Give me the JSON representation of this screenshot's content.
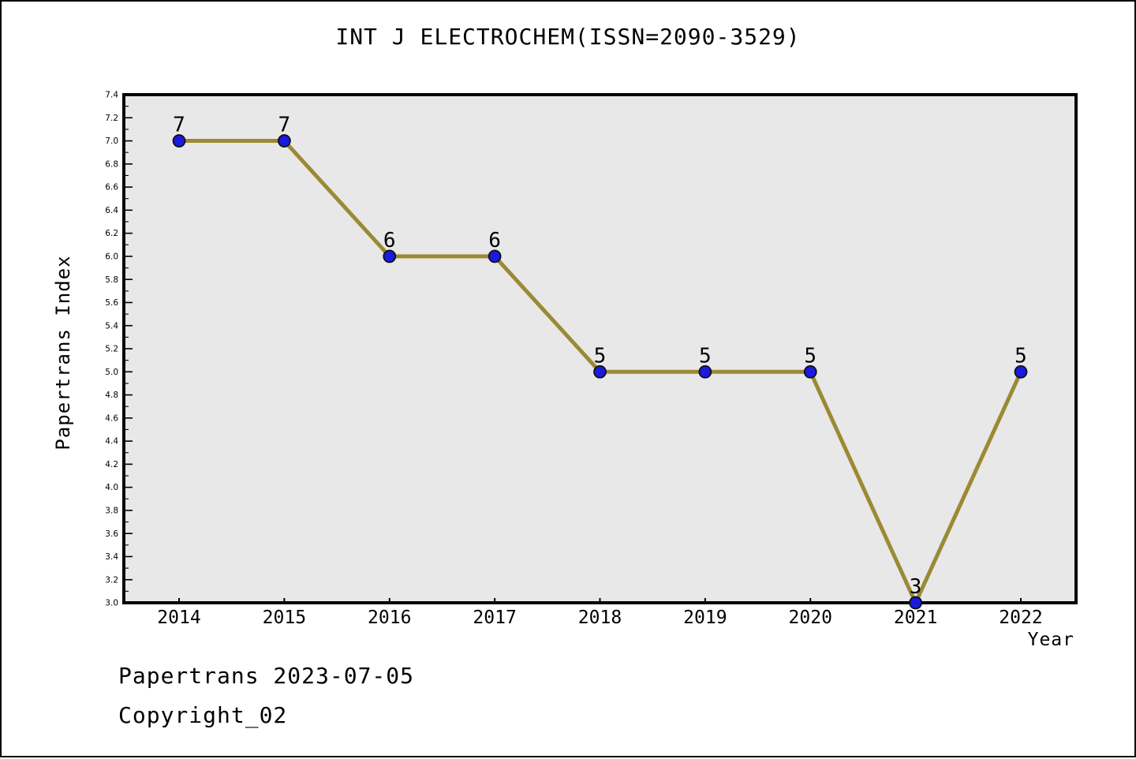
{
  "page": {
    "footer_line1": "Papertrans 2023-07-05",
    "footer_line2": "Copyright_02"
  },
  "chart_data": {
    "type": "line",
    "title": "INT J ELECTROCHEM(ISSN=2090-3529)",
    "xlabel": "Year",
    "ylabel": "Papertrans Index",
    "categories": [
      2014,
      2015,
      2016,
      2017,
      2018,
      2019,
      2020,
      2021,
      2022
    ],
    "values": [
      7,
      7,
      6,
      6,
      5,
      5,
      5,
      3,
      5
    ],
    "point_labels": [
      "7",
      "7",
      "6",
      "6",
      "5",
      "5",
      "5",
      "3",
      "5"
    ],
    "ylim": [
      3.0,
      7.4
    ],
    "ytick_major_step": 0.2,
    "ytick_minor_step": 0.1,
    "grid": false,
    "legend": "none",
    "colors": {
      "line": "#9b8a35",
      "marker_fill": "#1a1ae0",
      "marker_edge": "#101010",
      "plot_background": "#e8e8e8",
      "frame": "#000000",
      "text": "#000000"
    }
  }
}
